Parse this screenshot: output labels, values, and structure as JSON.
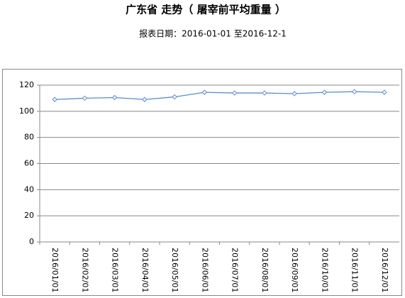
{
  "chart_data": {
    "type": "line",
    "title": "广东省 走势（ 屠宰前平均重量 ）",
    "subtitle": "报表日期：2016-01-01 至2016-12-1",
    "categories": [
      "2016/01/01",
      "2016/02/01",
      "2016/03/01",
      "2016/04/01",
      "2016/05/01",
      "2016/06/01",
      "2016/07/01",
      "2016/08/01",
      "2016/09/01",
      "2016/10/01",
      "2016/11/01",
      "2016/12/01"
    ],
    "values": [
      109,
      110,
      110.5,
      109,
      111,
      114.5,
      114,
      114,
      113.5,
      114.5,
      115,
      114.5
    ],
    "color": "#5b8ccc",
    "ylim": [
      0,
      120
    ],
    "yticks": [
      0,
      20,
      40,
      60,
      80,
      100,
      120
    ],
    "grid": true
  }
}
